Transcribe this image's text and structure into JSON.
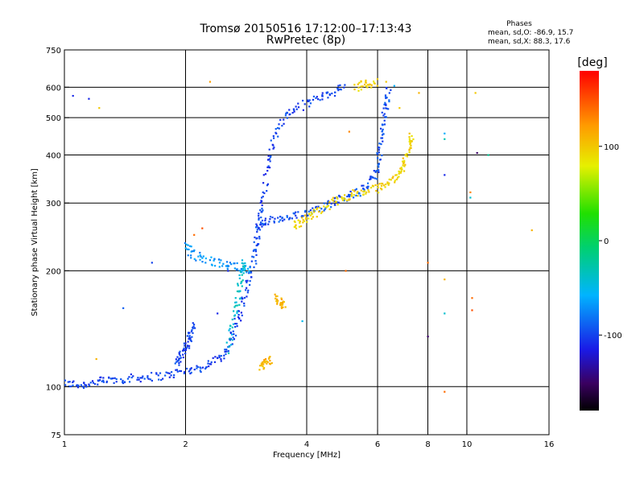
{
  "chart_data": {
    "type": "scatter",
    "title": "Tromsø 20150516 17:12:00–17:13:43",
    "subtitle": "RwPretec (8p)",
    "xlabel": "Frequency [MHz]",
    "ylabel": "Stationary phase Virtual Height [km]",
    "x_scale": "log",
    "y_scale": "log",
    "xlim": [
      1,
      16
    ],
    "ylim": [
      75,
      750
    ],
    "x_ticks": [
      "1",
      "2",
      "4",
      "6",
      "8",
      "10",
      "16"
    ],
    "y_ticks": [
      "75",
      "100",
      "200",
      "300",
      "400",
      "500",
      "600",
      "750"
    ],
    "x_tick_values": [
      1,
      2,
      4,
      6,
      8,
      10,
      16
    ],
    "y_tick_values": [
      75,
      100,
      200,
      300,
      400,
      500,
      600,
      750
    ],
    "x_grid": [
      2,
      4,
      6,
      8,
      10
    ],
    "y_grid": [
      100,
      200,
      300,
      400,
      500,
      600
    ],
    "grid": true,
    "phases_box": {
      "title": "Phases",
      "line_o": "mean, sd,O: -86.9, 15.7",
      "line_x": "mean, sd,X:  88.3, 17.6"
    },
    "colorbar": {
      "label": "[deg]",
      "range": [
        -180,
        180
      ],
      "ticks": [
        "100",
        "0",
        "-100"
      ],
      "tick_values": [
        100,
        0,
        -100
      ]
    },
    "traces": [
      {
        "points": [
          [
            1.0,
            102
          ],
          [
            1.1,
            101
          ],
          [
            1.2,
            103
          ],
          [
            1.3,
            104
          ],
          [
            1.45,
            105
          ],
          [
            1.6,
            106
          ],
          [
            1.8,
            107
          ],
          [
            2.0,
            110
          ],
          [
            2.2,
            112
          ],
          [
            2.4,
            118
          ],
          [
            2.55,
            125
          ],
          [
            2.65,
            140
          ],
          [
            2.75,
            160
          ],
          [
            2.85,
            185
          ],
          [
            2.95,
            210
          ],
          [
            3.0,
            240
          ],
          [
            3.05,
            270
          ],
          [
            3.1,
            300
          ],
          [
            3.2,
            370
          ],
          [
            3.3,
            430
          ],
          [
            3.5,
            500
          ],
          [
            3.8,
            530
          ],
          [
            4.2,
            560
          ],
          [
            4.6,
            580
          ],
          [
            5.0,
            600
          ]
        ],
        "phase": -100
      },
      {
        "points": [
          [
            3.0,
            260
          ],
          [
            3.2,
            270
          ],
          [
            3.5,
            272
          ],
          [
            3.8,
            278
          ],
          [
            4.2,
            290
          ],
          [
            4.6,
            300
          ],
          [
            5.0,
            312
          ],
          [
            5.4,
            320
          ],
          [
            5.8,
            340
          ],
          [
            6.0,
            370
          ],
          [
            6.1,
            420
          ],
          [
            6.2,
            480
          ],
          [
            6.3,
            540
          ],
          [
            6.4,
            600
          ]
        ],
        "phase": -95
      },
      {
        "points": [
          [
            3.7,
            262
          ],
          [
            3.9,
            270
          ],
          [
            4.2,
            282
          ],
          [
            4.6,
            300
          ],
          [
            5.0,
            312
          ],
          [
            5.5,
            320
          ],
          [
            6.0,
            328
          ],
          [
            6.4,
            340
          ],
          [
            6.8,
            360
          ],
          [
            7.0,
            380
          ],
          [
            7.2,
            420
          ],
          [
            7.3,
            460
          ]
        ],
        "phase": 95
      },
      {
        "points": [
          [
            5.3,
            600
          ],
          [
            5.6,
            610
          ],
          [
            6.0,
            618
          ]
        ],
        "phase": 95
      },
      {
        "points": [
          [
            2.0,
            232
          ],
          [
            2.1,
            220
          ],
          [
            2.3,
            212
          ],
          [
            2.5,
            208
          ],
          [
            2.7,
            205
          ],
          [
            2.9,
            200
          ]
        ],
        "phase": -70
      },
      {
        "points": [
          [
            2.55,
            125
          ],
          [
            2.65,
            150
          ],
          [
            2.7,
            175
          ],
          [
            2.75,
            195
          ],
          [
            2.8,
            210
          ]
        ],
        "phase": -40
      },
      {
        "points": [
          [
            3.35,
            170
          ],
          [
            3.45,
            165
          ],
          [
            3.5,
            160
          ]
        ],
        "phase": 110
      },
      {
        "points": [
          [
            3.05,
            112
          ],
          [
            3.15,
            115
          ],
          [
            3.25,
            118
          ]
        ],
        "phase": 110
      },
      {
        "points": [
          [
            1.9,
            115
          ],
          [
            1.95,
            120
          ],
          [
            2.0,
            126
          ],
          [
            2.05,
            135
          ],
          [
            2.1,
            145
          ]
        ],
        "phase": -100
      }
    ],
    "scatter_points": [
      {
        "x": 1.05,
        "y": 570,
        "phase": -110
      },
      {
        "x": 1.15,
        "y": 560,
        "phase": -110
      },
      {
        "x": 1.22,
        "y": 530,
        "phase": 100
      },
      {
        "x": 2.3,
        "y": 620,
        "phase": 120
      },
      {
        "x": 5.1,
        "y": 460,
        "phase": 130
      },
      {
        "x": 6.8,
        "y": 530,
        "phase": 100
      },
      {
        "x": 7.6,
        "y": 580,
        "phase": 110
      },
      {
        "x": 8.8,
        "y": 455,
        "phase": -60
      },
      {
        "x": 8.8,
        "y": 440,
        "phase": -30
      },
      {
        "x": 8.8,
        "y": 355,
        "phase": -110
      },
      {
        "x": 10.2,
        "y": 310,
        "phase": -40
      },
      {
        "x": 10.2,
        "y": 320,
        "phase": 130
      },
      {
        "x": 10.6,
        "y": 405,
        "phase": -150
      },
      {
        "x": 11.3,
        "y": 400,
        "phase": -20
      },
      {
        "x": 8.0,
        "y": 210,
        "phase": 140
      },
      {
        "x": 8.0,
        "y": 135,
        "phase": -150
      },
      {
        "x": 8.8,
        "y": 190,
        "phase": 110
      },
      {
        "x": 8.8,
        "y": 155,
        "phase": -40
      },
      {
        "x": 8.8,
        "y": 97,
        "phase": 140
      },
      {
        "x": 10.3,
        "y": 170,
        "phase": 140
      },
      {
        "x": 10.3,
        "y": 158,
        "phase": 150
      },
      {
        "x": 14.5,
        "y": 255,
        "phase": 110
      },
      {
        "x": 5.0,
        "y": 200,
        "phase": 140
      },
      {
        "x": 2.2,
        "y": 258,
        "phase": 150
      },
      {
        "x": 2.1,
        "y": 248,
        "phase": 140
      },
      {
        "x": 1.65,
        "y": 210,
        "phase": -100
      },
      {
        "x": 1.4,
        "y": 160,
        "phase": -90
      },
      {
        "x": 1.2,
        "y": 118,
        "phase": 110
      },
      {
        "x": 3.9,
        "y": 148,
        "phase": -50
      },
      {
        "x": 6.3,
        "y": 620,
        "phase": 100
      },
      {
        "x": 6.6,
        "y": 605,
        "phase": -60
      },
      {
        "x": 10.5,
        "y": 580,
        "phase": 100
      },
      {
        "x": 2.4,
        "y": 155,
        "phase": -110
      },
      {
        "x": 2.55,
        "y": 200,
        "phase": -110
      }
    ]
  }
}
